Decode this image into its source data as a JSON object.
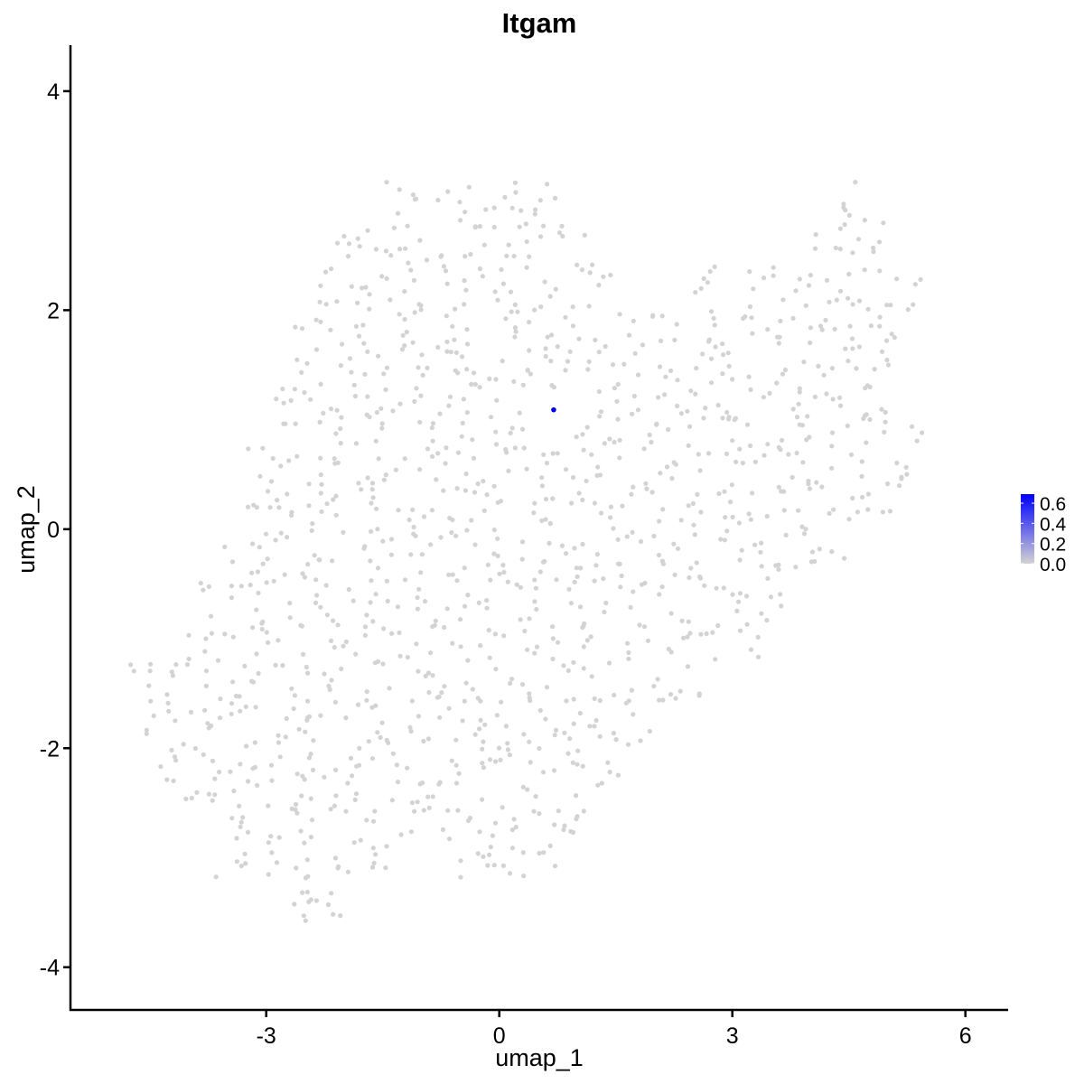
{
  "chart_data": {
    "type": "scatter",
    "title": "Itgam",
    "xlabel": "umap_1",
    "ylabel": "umap_2",
    "xlim": [
      -5.52,
      6.55
    ],
    "ylim": [
      -4.39,
      4.42
    ],
    "xticks": [
      -3,
      0,
      3,
      6
    ],
    "yticks": [
      -4,
      -2,
      0,
      2,
      4
    ],
    "grid": false,
    "legend": {
      "placement": "right",
      "type": "colorbar",
      "range": [
        0.0,
        0.69
      ],
      "ticks": [
        "0.0",
        "0.2",
        "0.4",
        "0.6"
      ],
      "tick_values": [
        0.0,
        0.2,
        0.4,
        0.6
      ],
      "low_color": "#D3D3D3",
      "high_color": "#0000FF"
    },
    "background_color": "#D3D3D3",
    "background_points_value": 0.0,
    "background_point_rows": [
      {
        "y": 3.0,
        "x": [
          -1.2,
          -0.6,
          0.0,
          0.5,
          4.5
        ]
      },
      {
        "y": 2.6,
        "x": [
          -2.0,
          -1.5,
          -1.0,
          -0.5,
          0.0,
          0.5,
          1.0,
          4.2,
          4.7
        ]
      },
      {
        "y": 2.2,
        "x": [
          -2.3,
          -1.8,
          -1.3,
          -0.8,
          -0.3,
          0.2,
          0.7,
          1.2,
          2.6,
          3.3,
          3.8,
          4.3,
          4.8,
          5.2
        ]
      },
      {
        "y": 1.8,
        "x": [
          -2.4,
          -1.9,
          -1.4,
          -0.9,
          -0.4,
          0.1,
          0.6,
          1.1,
          1.6,
          2.1,
          2.6,
          3.1,
          3.6,
          4.1,
          4.6,
          5.1
        ]
      },
      {
        "y": 1.4,
        "x": [
          -2.6,
          -2.1,
          -1.6,
          -1.1,
          -0.6,
          -0.1,
          0.4,
          0.9,
          1.4,
          1.9,
          2.4,
          2.9,
          3.4,
          3.9,
          4.4,
          4.9
        ]
      },
      {
        "y": 1.0,
        "x": [
          -2.8,
          -2.3,
          -1.8,
          -1.3,
          -0.8,
          -0.3,
          0.2,
          1.2,
          1.7,
          2.2,
          2.7,
          3.2,
          3.7,
          4.2,
          4.7,
          5.2
        ]
      },
      {
        "y": 0.6,
        "x": [
          -3.0,
          -2.5,
          -2.0,
          -1.5,
          -1.0,
          -0.5,
          0.0,
          0.5,
          1.0,
          1.5,
          2.0,
          2.5,
          3.0,
          3.5,
          4.0,
          4.5,
          5.0
        ]
      },
      {
        "y": 0.2,
        "x": [
          -3.1,
          -2.6,
          -2.1,
          -1.6,
          -1.1,
          -0.6,
          -0.1,
          0.4,
          0.9,
          1.4,
          1.9,
          2.4,
          2.9,
          3.4,
          3.9,
          4.4,
          4.9
        ]
      },
      {
        "y": -0.2,
        "x": [
          -3.3,
          -2.8,
          -2.3,
          -1.8,
          -1.3,
          -0.8,
          -0.3,
          0.2,
          0.7,
          1.2,
          1.7,
          2.2,
          2.7,
          3.2,
          3.7,
          4.2
        ]
      },
      {
        "y": -0.6,
        "x": [
          -3.6,
          -3.1,
          -2.6,
          -2.1,
          -1.6,
          -1.1,
          -0.6,
          -0.1,
          0.4,
          0.9,
          1.4,
          1.9,
          2.4,
          2.9,
          3.4
        ]
      },
      {
        "y": -1.0,
        "x": [
          -3.8,
          -3.3,
          -2.8,
          -2.3,
          -1.8,
          -1.3,
          -0.8,
          -0.3,
          0.2,
          0.7,
          1.2,
          1.7,
          2.2,
          2.7,
          3.2
        ]
      },
      {
        "y": -1.4,
        "x": [
          -4.6,
          -4.1,
          -3.6,
          -3.1,
          -2.6,
          -2.1,
          -1.6,
          -1.1,
          -0.6,
          -0.1,
          0.4,
          0.9,
          1.4,
          1.9,
          2.4
        ]
      },
      {
        "y": -1.8,
        "x": [
          -4.3,
          -3.8,
          -3.3,
          -2.8,
          -2.3,
          -1.8,
          -1.3,
          -0.8,
          -0.3,
          0.2,
          0.7,
          1.2,
          1.7
        ]
      },
      {
        "y": -2.2,
        "x": [
          -4.2,
          -3.7,
          -3.2,
          -2.7,
          -2.2,
          -1.7,
          -1.2,
          -0.7,
          -0.2,
          0.3,
          0.8,
          1.3
        ]
      },
      {
        "y": -2.6,
        "x": [
          -3.8,
          -3.3,
          -2.8,
          -2.3,
          -1.8,
          -1.3,
          -0.8,
          -0.3,
          0.2,
          0.7,
          1.0
        ]
      },
      {
        "y": -3.0,
        "x": [
          -3.4,
          -2.9,
          -2.4,
          -1.9,
          -1.4,
          -0.4,
          0.1,
          0.5
        ]
      },
      {
        "y": -3.4,
        "x": [
          -2.6,
          -2.2
        ]
      }
    ],
    "highlighted_points": [
      {
        "x": 0.7,
        "y": 1.09,
        "value": 0.69,
        "color": "#0000FF"
      }
    ]
  }
}
